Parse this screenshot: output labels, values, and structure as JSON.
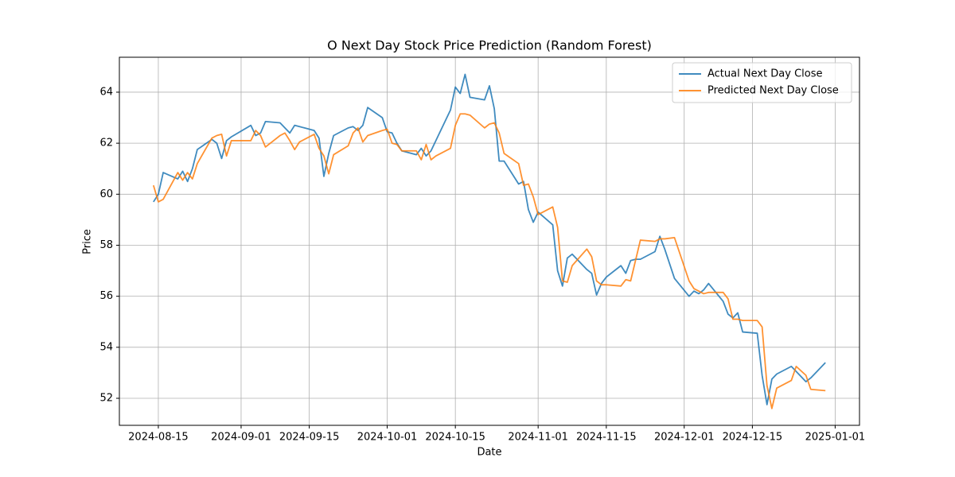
{
  "chart_data": {
    "type": "line",
    "title": "O Next Day Stock Price Prediction (Random Forest)",
    "x_label": "Date",
    "y_label": "Price",
    "x": [
      "2024-08-14",
      "2024-08-15",
      "2024-08-16",
      "2024-08-19",
      "2024-08-20",
      "2024-08-21",
      "2024-08-22",
      "2024-08-23",
      "2024-08-26",
      "2024-08-27",
      "2024-08-28",
      "2024-08-29",
      "2024-08-30",
      "2024-09-03",
      "2024-09-04",
      "2024-09-05",
      "2024-09-06",
      "2024-09-09",
      "2024-09-10",
      "2024-09-11",
      "2024-09-12",
      "2024-09-13",
      "2024-09-16",
      "2024-09-17",
      "2024-09-18",
      "2024-09-19",
      "2024-09-20",
      "2024-09-23",
      "2024-09-24",
      "2024-09-25",
      "2024-09-26",
      "2024-09-27",
      "2024-09-30",
      "2024-10-01",
      "2024-10-02",
      "2024-10-03",
      "2024-10-04",
      "2024-10-07",
      "2024-10-08",
      "2024-10-09",
      "2024-10-10",
      "2024-10-11",
      "2024-10-14",
      "2024-10-15",
      "2024-10-16",
      "2024-10-17",
      "2024-10-18",
      "2024-10-21",
      "2024-10-22",
      "2024-10-23",
      "2024-10-24",
      "2024-10-25",
      "2024-10-28",
      "2024-10-29",
      "2024-10-30",
      "2024-10-31",
      "2024-11-01",
      "2024-11-04",
      "2024-11-05",
      "2024-11-06",
      "2024-11-07",
      "2024-11-08",
      "2024-11-11",
      "2024-11-12",
      "2024-11-13",
      "2024-11-14",
      "2024-11-15",
      "2024-11-18",
      "2024-11-19",
      "2024-11-20",
      "2024-11-21",
      "2024-11-22",
      "2024-11-25",
      "2024-11-26",
      "2024-11-27",
      "2024-11-29",
      "2024-12-02",
      "2024-12-03",
      "2024-12-04",
      "2024-12-05",
      "2024-12-06",
      "2024-12-09",
      "2024-12-10",
      "2024-12-11",
      "2024-12-12",
      "2024-12-13",
      "2024-12-16",
      "2024-12-17",
      "2024-12-18",
      "2024-12-19",
      "2024-12-20",
      "2024-12-23",
      "2024-12-24",
      "2024-12-26",
      "2024-12-27",
      "2024-12-30"
    ],
    "series": [
      {
        "name": "Actual Next Day Close",
        "color": "#1f77b4",
        "values": [
          59.7,
          60.0,
          60.85,
          60.6,
          60.9,
          60.5,
          61.0,
          61.75,
          62.15,
          62.0,
          61.4,
          62.1,
          62.25,
          62.7,
          62.3,
          62.4,
          62.85,
          62.8,
          62.6,
          62.4,
          62.7,
          62.65,
          62.5,
          62.2,
          60.7,
          61.6,
          62.3,
          62.6,
          62.65,
          62.5,
          62.7,
          63.4,
          63.0,
          62.45,
          62.4,
          62.0,
          61.7,
          61.55,
          61.8,
          61.5,
          61.7,
          62.1,
          63.3,
          64.2,
          63.95,
          64.7,
          63.8,
          63.7,
          64.25,
          63.35,
          61.3,
          61.3,
          60.4,
          60.5,
          59.4,
          58.9,
          59.3,
          58.8,
          57.0,
          56.4,
          57.5,
          57.65,
          57.05,
          56.9,
          56.05,
          56.5,
          56.75,
          57.2,
          56.9,
          57.4,
          57.45,
          57.45,
          57.75,
          58.35,
          57.85,
          56.7,
          56.0,
          56.2,
          56.1,
          56.25,
          56.5,
          55.8,
          55.3,
          55.15,
          55.35,
          54.6,
          54.55,
          52.9,
          51.75,
          52.75,
          52.95,
          53.25,
          53.05,
          52.65,
          52.8,
          53.4
        ]
      },
      {
        "name": "Predicted Next Day Close",
        "color": "#ff7f0e",
        "values": [
          60.35,
          59.7,
          59.8,
          60.85,
          60.55,
          60.85,
          60.6,
          61.2,
          62.2,
          62.3,
          62.35,
          61.5,
          62.1,
          62.1,
          62.5,
          62.3,
          61.85,
          62.3,
          62.4,
          62.1,
          61.75,
          62.05,
          62.35,
          61.8,
          61.5,
          60.8,
          61.55,
          61.9,
          62.4,
          62.6,
          62.05,
          62.3,
          62.5,
          62.55,
          62.0,
          61.95,
          61.7,
          61.7,
          61.35,
          61.95,
          61.35,
          61.5,
          61.8,
          62.7,
          63.15,
          63.15,
          63.1,
          62.6,
          62.75,
          62.8,
          62.4,
          61.6,
          61.2,
          60.35,
          60.4,
          59.9,
          59.2,
          59.5,
          58.7,
          56.6,
          56.55,
          57.2,
          57.85,
          57.55,
          56.6,
          56.45,
          56.45,
          56.4,
          56.65,
          56.6,
          57.4,
          58.2,
          58.15,
          58.25,
          58.25,
          58.3,
          56.6,
          56.3,
          56.2,
          56.1,
          56.15,
          56.15,
          55.9,
          55.1,
          55.1,
          55.05,
          55.05,
          54.8,
          52.5,
          51.6,
          52.4,
          52.7,
          53.25,
          52.9,
          52.35,
          52.3
        ]
      }
    ],
    "xlim": [
      "2024-08-07",
      "2025-01-06"
    ],
    "xticks": [
      "2024-08-15",
      "2024-09-01",
      "2024-09-15",
      "2024-10-01",
      "2024-10-15",
      "2024-11-01",
      "2024-11-15",
      "2024-12-01",
      "2024-12-15",
      "2025-01-01"
    ],
    "ylim": [
      50.94,
      65.37
    ],
    "yticks": [
      52,
      54,
      56,
      58,
      60,
      62,
      64
    ],
    "grid": true,
    "legend": "upper right"
  }
}
